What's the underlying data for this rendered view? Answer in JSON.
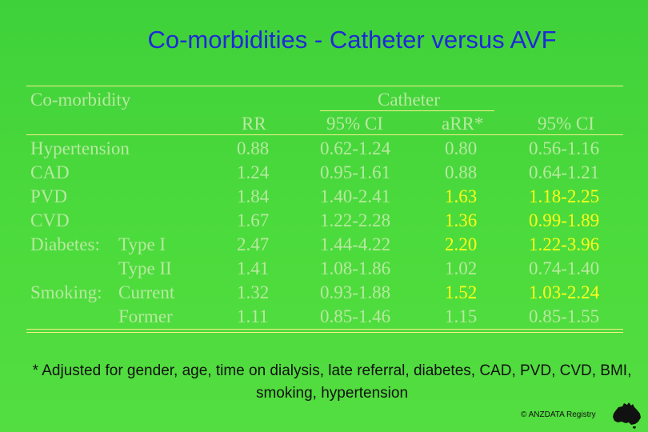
{
  "title": "Co-morbidities - Catheter versus AVF",
  "table": {
    "header": {
      "comorbidity": "Co-morbidity",
      "group": "Catheter",
      "rr": "RR",
      "ci1": "95% CI",
      "arr": "aRR*",
      "ci2": "95% CI"
    },
    "rows": [
      {
        "label": "Hypertension",
        "sub": "",
        "rr": "0.88",
        "ci1": "0.62-1.24",
        "arr": "0.80",
        "ci2": "0.56-1.16",
        "highlight": false
      },
      {
        "label": "CAD",
        "sub": "",
        "rr": "1.24",
        "ci1": "0.95-1.61",
        "arr": "0.88",
        "ci2": "0.64-1.21",
        "highlight": false
      },
      {
        "label": "PVD",
        "sub": "",
        "rr": "1.84",
        "ci1": "1.40-2.41",
        "arr": "1.63",
        "ci2": "1.18-2.25",
        "highlight": true
      },
      {
        "label": "CVD",
        "sub": "",
        "rr": "1.67",
        "ci1": "1.22-2.28",
        "arr": "1.36",
        "ci2": "0.99-1.89",
        "highlight": true
      },
      {
        "label": "Diabetes:",
        "sub": "Type I",
        "rr": "2.47",
        "ci1": "1.44-4.22",
        "arr": "2.20",
        "ci2": "1.22-3.96",
        "highlight": true
      },
      {
        "label": "",
        "sub": "Type II",
        "rr": "1.41",
        "ci1": "1.08-1.86",
        "arr": "1.02",
        "ci2": "0.74-1.40",
        "highlight": false
      },
      {
        "label": "Smoking:",
        "sub": "Current",
        "rr": "1.32",
        "ci1": "0.93-1.88",
        "arr": "1.52",
        "ci2": "1.03-2.24",
        "highlight": true
      },
      {
        "label": "",
        "sub": "Former",
        "rr": "1.11",
        "ci1": "0.85-1.46",
        "arr": "1.15",
        "ci2": "0.85-1.55",
        "highlight": false
      }
    ]
  },
  "footnote": "* Adjusted for gender, age, time on dialysis, late referral, diabetes, CAD, PVD, CVD, BMI, smoking, hypertension",
  "credit": "© ANZDATA Registry",
  "colors": {
    "background": "#4cdb3c",
    "title": "#1e2ad6",
    "muted_text": "#b7e8a0",
    "highlight_text": "#ffff1a",
    "rule": "#f4f08a"
  },
  "logo_icon": "australia-map-icon"
}
